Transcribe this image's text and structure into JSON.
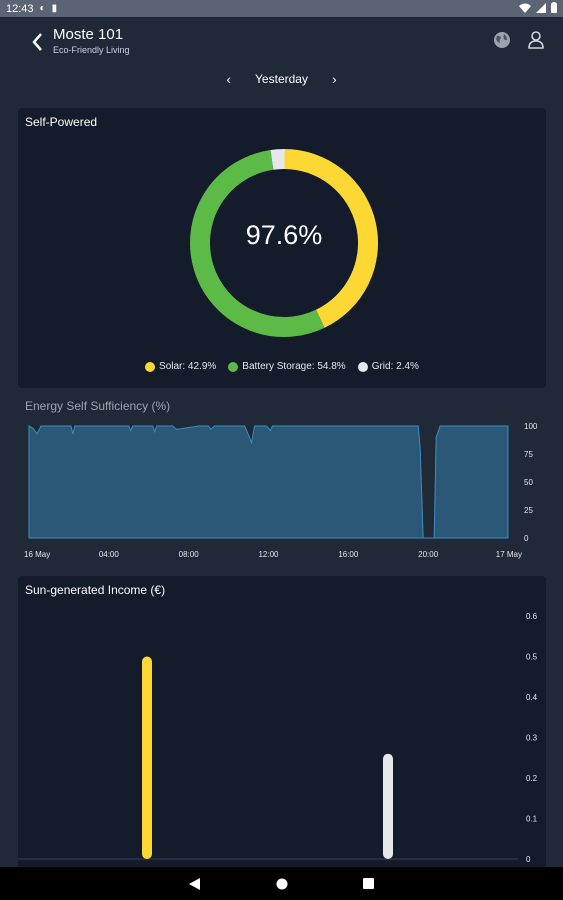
{
  "status_bar": {
    "time": "12:43"
  },
  "app_bar": {
    "title": "Moste 101",
    "subtitle": "Eco-Friendly Living"
  },
  "date_nav": {
    "label": "Yesterday"
  },
  "self_powered": {
    "title": "Self-Powered",
    "center_value": "97.6%",
    "segments": [
      {
        "name": "Solar",
        "percent": 42.9,
        "color": "#fdd835",
        "label": "Solar: 42.9%"
      },
      {
        "name": "Battery Storage",
        "percent": 54.8,
        "color": "#5cbb46",
        "label": "Battery Storage: 54.8%"
      },
      {
        "name": "Grid",
        "percent": 2.4,
        "color": "#e5e7eb",
        "label": "Grid: 2.4%"
      }
    ]
  },
  "sufficiency": {
    "title": "Energy Self Sufficiency (%)",
    "x_ticks": [
      "16 May",
      "04:00",
      "08:00",
      "12:00",
      "16:00",
      "20:00",
      "17 May"
    ],
    "y_ticks": [
      "100",
      "75",
      "50",
      "25",
      "0"
    ]
  },
  "income": {
    "title": "Sun-generated Income (€)",
    "y_ticks": [
      "0.6",
      "0.5",
      "0.4",
      "0.3",
      "0.2",
      "0.1",
      "0"
    ]
  },
  "chart_data": [
    {
      "type": "area",
      "title": "Energy Self Sufficiency (%)",
      "ylim": [
        0,
        100
      ],
      "x_hours": [
        0,
        0.2,
        0.4,
        0.6,
        2.1,
        2.2,
        2.3,
        4.5,
        5.0,
        5.1,
        5.2,
        5.6,
        6.2,
        6.3,
        6.4,
        7.2,
        7.4,
        8.5,
        9.0,
        9.1,
        9.3,
        9.5,
        10.8,
        11.0,
        11.15,
        11.3,
        11.9,
        12.1,
        12.2,
        13.0,
        14.0,
        19.5,
        19.6,
        19.75,
        20.3,
        20.4,
        20.6,
        21.0,
        22.0,
        23.0,
        24.0
      ],
      "y": [
        100,
        98,
        93,
        100,
        100,
        93,
        100,
        100,
        100,
        96,
        100,
        100,
        100,
        95,
        100,
        100,
        97,
        100,
        100,
        97,
        100,
        100,
        100,
        92,
        85,
        100,
        100,
        96,
        100,
        100,
        100,
        100,
        80,
        0,
        0,
        90,
        100,
        100,
        100,
        100,
        100
      ]
    },
    {
      "type": "bar",
      "title": "Sun-generated Income (€)",
      "ylim": [
        0,
        0.6
      ],
      "series": [
        {
          "color": "#fdd835",
          "x_fraction": 0.258,
          "value": 0.5
        },
        {
          "color": "#e5e7eb",
          "x_fraction": 0.74,
          "value": 0.26
        }
      ]
    }
  ]
}
